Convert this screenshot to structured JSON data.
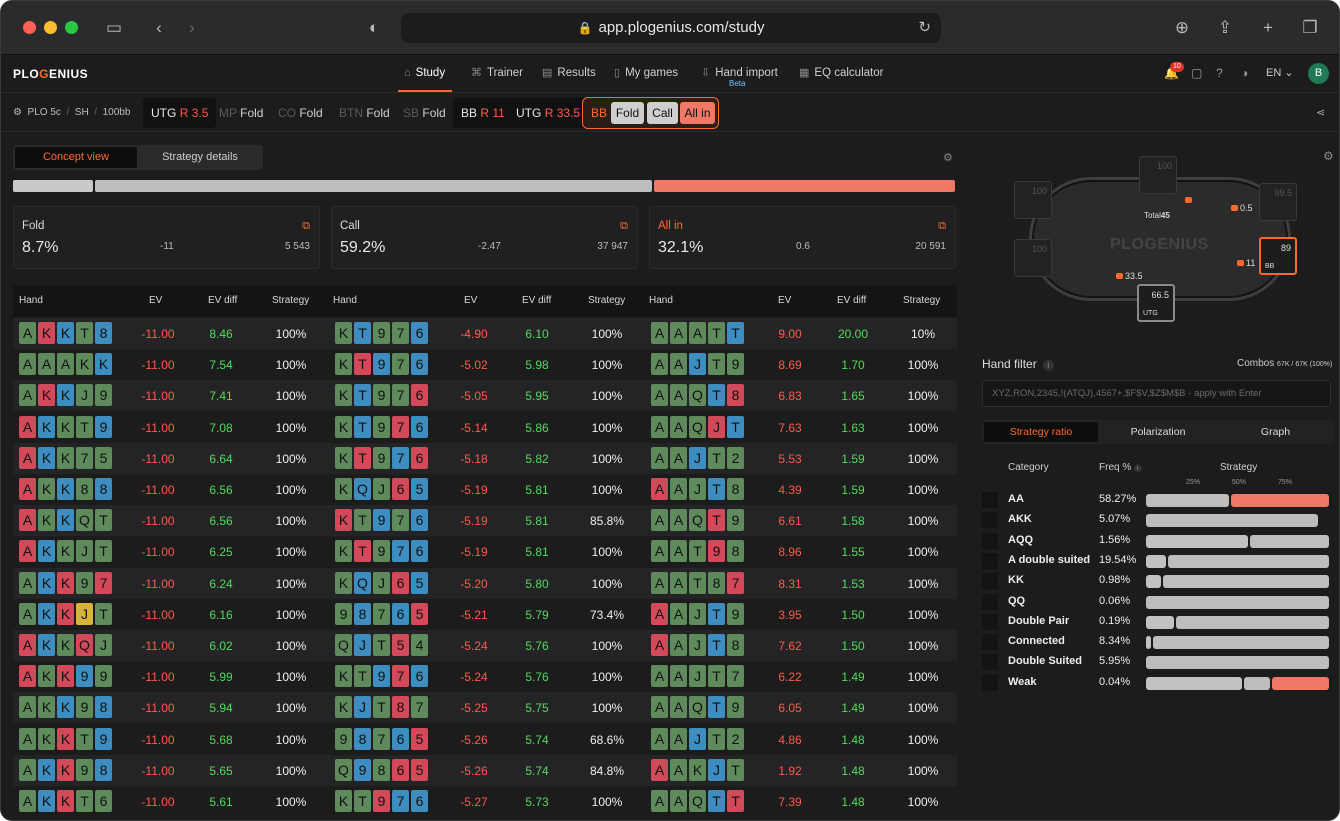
{
  "browser": {
    "url": "app.plogenius.com/study"
  },
  "app": {
    "logo": {
      "pre": "PLO",
      "g": "G",
      "post": "ENIUS"
    },
    "nav": [
      {
        "label": "Study",
        "icon": "graduation-cap-icon",
        "active": true
      },
      {
        "label": "Trainer",
        "icon": "trainer-icon",
        "active": false
      },
      {
        "label": "Results",
        "icon": "results-icon",
        "active": false
      },
      {
        "label": "My games",
        "icon": "cards-icon",
        "active": false
      },
      {
        "label": "Hand import",
        "icon": "import-icon",
        "active": false
      },
      {
        "label": "EQ calculator",
        "icon": "calculator-icon",
        "active": false
      }
    ],
    "beta": "Beta",
    "notif_count": "10",
    "lang": "EN",
    "avatar": "B"
  },
  "game": {
    "variant": "PLO 5c",
    "sep1": "/",
    "format": "SH",
    "sep2": "/",
    "stack": "100bb"
  },
  "path": [
    {
      "pos": "UTG",
      "act": "R 3.5",
      "state": "active"
    },
    {
      "pos": "MP",
      "act": "Fold",
      "state": "dim"
    },
    {
      "pos": "CO",
      "act": "Fold",
      "state": "dim"
    },
    {
      "pos": "BTN",
      "act": "Fold",
      "state": "dim"
    },
    {
      "pos": "SB",
      "act": "Fold",
      "state": "dim"
    },
    {
      "pos": "BB",
      "act": "R 11",
      "state": "active"
    },
    {
      "pos": "UTG",
      "act": "R 33.5",
      "state": "active"
    }
  ],
  "decision": {
    "pos": "BB",
    "actions": [
      "Fold",
      "Call",
      "All in"
    ]
  },
  "view_tabs": {
    "concept": "Concept view",
    "details": "Strategy details"
  },
  "summary": [
    {
      "action": "Fold",
      "pct": "8.7%",
      "ev": "-11",
      "combos": "5 543"
    },
    {
      "action": "Call",
      "pct": "59.2%",
      "ev": "-2.47",
      "combos": "37 947"
    },
    {
      "action": "All in",
      "pct": "32.1%",
      "ev": "0.6",
      "combos": "20 591"
    }
  ],
  "strategy_bar": {
    "fold": 0.087,
    "call": 0.592,
    "allin": 0.321,
    "colors": {
      "fold": "#c9c9c9",
      "call": "#bdbdbd",
      "allin": "#f07866"
    }
  },
  "table_headers": {
    "hand": "Hand",
    "ev": "EV",
    "evdiff": "EV diff",
    "strategy": "Strategy"
  },
  "card_colors": {
    "s": "#5e8a5c",
    "h": "#d2495a",
    "d": "#3d8dc1",
    "c": "#d9b23a"
  },
  "columns": [
    {
      "rows": [
        {
          "hand": "As Kh Kd Ts 8d",
          "ev": "-11.00",
          "evdiff": "8.46",
          "strat": "100%"
        },
        {
          "hand": "As As As Ks Kd",
          "ev": "-11.00",
          "evdiff": "7.54",
          "strat": "100%"
        },
        {
          "hand": "As Kh Kd Js 9s",
          "ev": "-11.00",
          "evdiff": "7.41",
          "strat": "100%"
        },
        {
          "hand": "Ah Kd Ks Ts 9d",
          "ev": "-11.00",
          "evdiff": "7.08",
          "strat": "100%"
        },
        {
          "hand": "Ah Kd Ks 7s 5s",
          "ev": "-11.00",
          "evdiff": "6.64",
          "strat": "100%"
        },
        {
          "hand": "Ah Ks Kd 8s 8d",
          "ev": "-11.00",
          "evdiff": "6.56",
          "strat": "100%"
        },
        {
          "hand": "Ah Ks Kd Qs Ts",
          "ev": "-11.00",
          "evdiff": "6.56",
          "strat": "100%"
        },
        {
          "hand": "Ah Kd Ks Js Ts",
          "ev": "-11.00",
          "evdiff": "6.25",
          "strat": "100%"
        },
        {
          "hand": "As Kd Kh 9s 7h",
          "ev": "-11.00",
          "evdiff": "6.24",
          "strat": "100%"
        },
        {
          "hand": "As Kd Kh Jc Ts",
          "ev": "-11.00",
          "evdiff": "6.16",
          "strat": "100%"
        },
        {
          "hand": "Ah Kd Ks Qh Js",
          "ev": "-11.00",
          "evdiff": "6.02",
          "strat": "100%"
        },
        {
          "hand": "Ah Ks Kh 9d 9s",
          "ev": "-11.00",
          "evdiff": "5.99",
          "strat": "100%"
        },
        {
          "hand": "As Ks Kd 9s 8d",
          "ev": "-11.00",
          "evdiff": "5.94",
          "strat": "100%"
        },
        {
          "hand": "As Ks Kh Ts 9d",
          "ev": "-11.00",
          "evdiff": "5.68",
          "strat": "100%"
        },
        {
          "hand": "As Kd Kh 9s 8d",
          "ev": "-11.00",
          "evdiff": "5.65",
          "strat": "100%"
        },
        {
          "hand": "As Kd Kh Ts 6s",
          "ev": "-11.00",
          "evdiff": "5.61",
          "strat": "100%"
        }
      ]
    },
    {
      "rows": [
        {
          "hand": "Ks Td 9s 7s 6d",
          "ev": "-4.90",
          "evdiff": "6.10",
          "strat": "100%"
        },
        {
          "hand": "Ks Th 9d 7s 6d",
          "ev": "-5.02",
          "evdiff": "5.98",
          "strat": "100%"
        },
        {
          "hand": "Ks Td 9s 7s 6h",
          "ev": "-5.05",
          "evdiff": "5.95",
          "strat": "100%"
        },
        {
          "hand": "Ks Td 9s 7h 6d",
          "ev": "-5.14",
          "evdiff": "5.86",
          "strat": "100%"
        },
        {
          "hand": "Ks Th 9s 7d 6h",
          "ev": "-5.18",
          "evdiff": "5.82",
          "strat": "100%"
        },
        {
          "hand": "Ks Qd Js 6h 5d",
          "ev": "-5.19",
          "evdiff": "5.81",
          "strat": "100%"
        },
        {
          "hand": "Kh Ts 9d 7s 6d",
          "ev": "-5.19",
          "evdiff": "5.81",
          "strat": "85.8%"
        },
        {
          "hand": "Ks Th 9s 7d 6d",
          "ev": "-5.19",
          "evdiff": "5.81",
          "strat": "100%"
        },
        {
          "hand": "Ks Qd Js 6h 5d",
          "ev": "-5.20",
          "evdiff": "5.80",
          "strat": "100%"
        },
        {
          "hand": "9s 8d 7s 6d 5h",
          "ev": "-5.21",
          "evdiff": "5.79",
          "strat": "73.4%"
        },
        {
          "hand": "Qs Jd Ts 5h 4s",
          "ev": "-5.24",
          "evdiff": "5.76",
          "strat": "100%"
        },
        {
          "hand": "Ks Ts 9d 7h 6d",
          "ev": "-5.24",
          "evdiff": "5.76",
          "strat": "100%"
        },
        {
          "hand": "Ks Jd Ts 8h 7s",
          "ev": "-5.25",
          "evdiff": "5.75",
          "strat": "100%"
        },
        {
          "hand": "9s 8d 7s 6d 5h",
          "ev": "-5.26",
          "evdiff": "5.74",
          "strat": "68.6%"
        },
        {
          "hand": "Qs 9d 8s 6h 5h",
          "ev": "-5.26",
          "evdiff": "5.74",
          "strat": "84.8%"
        },
        {
          "hand": "Ks Ts 9h 7d 6d",
          "ev": "-5.27",
          "evdiff": "5.73",
          "strat": "100%"
        }
      ]
    },
    {
      "rows": [
        {
          "hand": "As As As Ts Td",
          "ev": "9.00",
          "evdiff": "20.00",
          "strat": "10%"
        },
        {
          "hand": "As As Jd Ts 9s",
          "ev": "8.69",
          "evdiff": "1.70",
          "strat": "100%"
        },
        {
          "hand": "As As Qs Td 8h",
          "ev": "6.83",
          "evdiff": "1.65",
          "strat": "100%"
        },
        {
          "hand": "As As Qs Jh Td",
          "ev": "7.63",
          "evdiff": "1.63",
          "strat": "100%"
        },
        {
          "hand": "As As Jd Ts 2s",
          "ev": "5.53",
          "evdiff": "1.59",
          "strat": "100%"
        },
        {
          "hand": "Ah As Js Td 8s",
          "ev": "4.39",
          "evdiff": "1.59",
          "strat": "100%"
        },
        {
          "hand": "As As Qs Th 9s",
          "ev": "6.61",
          "evdiff": "1.58",
          "strat": "100%"
        },
        {
          "hand": "As As Ts 9h 8s",
          "ev": "8.96",
          "evdiff": "1.55",
          "strat": "100%"
        },
        {
          "hand": "As As Ts 8s 7h",
          "ev": "8.31",
          "evdiff": "1.53",
          "strat": "100%"
        },
        {
          "hand": "Ah As Js Td 9s",
          "ev": "3.95",
          "evdiff": "1.50",
          "strat": "100%"
        },
        {
          "hand": "Ah As Js Td 8s",
          "ev": "7.62",
          "evdiff": "1.50",
          "strat": "100%"
        },
        {
          "hand": "As As Js Ts 7s",
          "ev": "6.22",
          "evdiff": "1.49",
          "strat": "100%"
        },
        {
          "hand": "As As Qs Td 9s",
          "ev": "6.05",
          "evdiff": "1.49",
          "strat": "100%"
        },
        {
          "hand": "As As Jd Ts 2s",
          "ev": "4.86",
          "evdiff": "1.48",
          "strat": "100%"
        },
        {
          "hand": "Ah As Ks Jd Ts",
          "ev": "1.92",
          "evdiff": "1.48",
          "strat": "100%"
        },
        {
          "hand": "As As Qs Td Th",
          "ev": "7.39",
          "evdiff": "1.48",
          "strat": "100%"
        }
      ]
    }
  ],
  "poker_table": {
    "logo": "PLOGENIUS",
    "total_label": "Total",
    "total": "45",
    "seats": [
      {
        "stack": "100",
        "pos": ""
      },
      {
        "stack": "100",
        "pos": ""
      },
      {
        "stack": "100",
        "pos": ""
      },
      {
        "stack": "99.5",
        "pos": ""
      },
      {
        "stack": "89",
        "pos": "BB"
      },
      {
        "stack": "66.5",
        "pos": "UTG"
      }
    ],
    "chips": {
      "sb": "0.5",
      "bb": "11",
      "utg": "33.5"
    }
  },
  "hand_filter": {
    "label": "Hand filter",
    "combos_label": "Combos",
    "combos_value": "67K / 67K (100%)",
    "placeholder": "XYZ,RON,2345,!(ATQJ),4567+,$F$V,$Z$M$B - apply with Enter"
  },
  "ratio_tabs": [
    "Strategy ratio",
    "Polarization",
    "Graph"
  ],
  "category_headers": {
    "category": "Category",
    "freq": "Freq %",
    "strategy": "Strategy"
  },
  "ticks": [
    "25%",
    "50%",
    "75%"
  ],
  "categories": [
    {
      "name": "AA",
      "freq": "58.27%",
      "fold": 0.0,
      "call": 0.46,
      "allin": 0.54
    },
    {
      "name": "AKK",
      "freq": "5.07%",
      "fold": 0.0,
      "call": 0.94,
      "allin": 0.0
    },
    {
      "name": "AQQ",
      "freq": "1.56%",
      "fold": 0.56,
      "call": 0.44,
      "allin": 0.0
    },
    {
      "name": "A double suited",
      "freq": "19.54%",
      "fold": 0.12,
      "call": 0.88,
      "allin": 0.0
    },
    {
      "name": "KK",
      "freq": "0.98%",
      "fold": 0.09,
      "call": 0.91,
      "allin": 0.0
    },
    {
      "name": "QQ",
      "freq": "0.06%",
      "fold": 0.0,
      "call": 1.0,
      "allin": 0.0
    },
    {
      "name": "Double Pair",
      "freq": "0.19%",
      "fold": 0.16,
      "call": 0.84,
      "allin": 0.0
    },
    {
      "name": "Connected",
      "freq": "8.34%",
      "fold": 0.04,
      "call": 0.96,
      "allin": 0.0
    },
    {
      "name": "Double Suited",
      "freq": "5.95%",
      "fold": 0.0,
      "call": 1.0,
      "allin": 0.0
    },
    {
      "name": "Weak",
      "freq": "0.04%",
      "fold": 0.53,
      "call": 0.15,
      "allin": 0.32
    }
  ]
}
